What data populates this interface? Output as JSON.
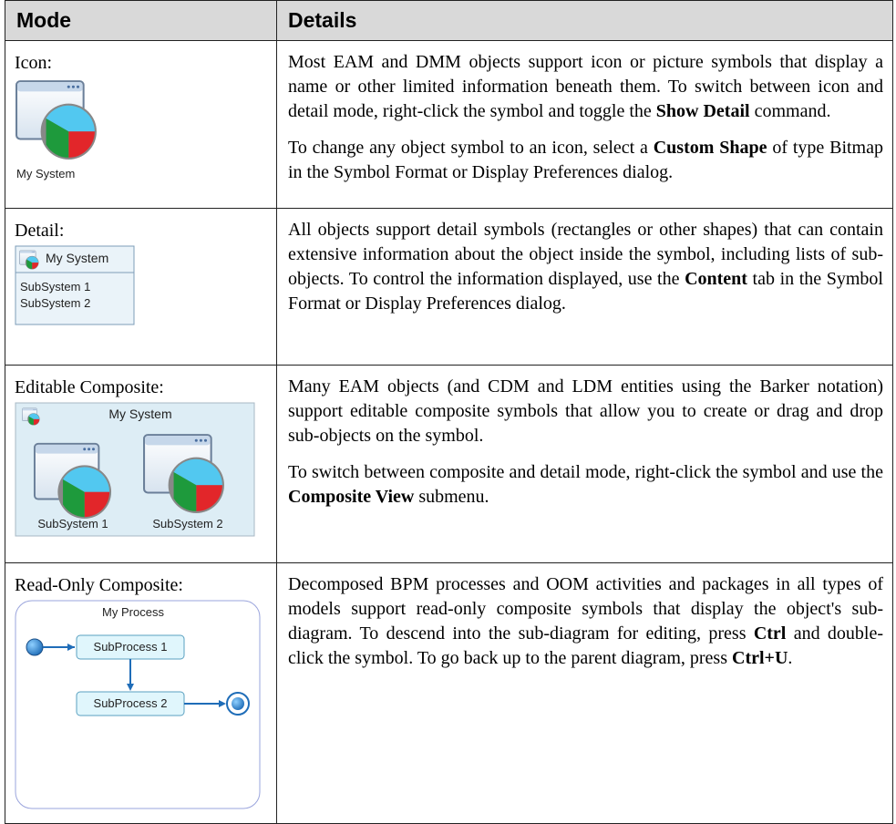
{
  "table": {
    "header": [
      "Mode",
      "Details"
    ],
    "rows": [
      {
        "mode": "Icon:",
        "figure": {
          "label": "My System"
        },
        "details": [
          [
            {
              "text": "Most EAM and DMM objects support icon or picture symbols that display a name or other limited information beneath them. To switch between icon and detail mode, right-click the symbol and toggle the "
            },
            {
              "text": "Show Detail",
              "bold": true
            },
            {
              "text": " command."
            }
          ],
          [
            {
              "text": "To change any object symbol to an icon, select a "
            },
            {
              "text": "Custom Shape",
              "bold": true
            },
            {
              "text": " of type Bitmap in the Symbol Format or Display Preferences dialog."
            }
          ]
        ]
      },
      {
        "mode": "Detail:",
        "figure": {
          "label": "My System",
          "items": [
            "SubSystem 1",
            "SubSystem 2"
          ]
        },
        "details": [
          [
            {
              "text": "All objects support detail symbols (rectangles or other shapes) that can contain extensive information about the object inside the symbol, including lists of sub-objects. To control the information displayed, use the "
            },
            {
              "text": "Content",
              "bold": true
            },
            {
              "text": " tab in the Symbol Format or Display Preferences dialog."
            }
          ]
        ]
      },
      {
        "mode": "Editable Composite:",
        "figure": {
          "label": "My System",
          "items": [
            "SubSystem 1",
            "SubSystem 2"
          ]
        },
        "details": [
          [
            {
              "text": "Many EAM objects (and CDM and LDM entities using the Barker notation) support editable composite symbols that allow you to create or drag and drop sub-objects on the symbol."
            }
          ],
          [
            {
              "text": "To switch between composite and detail mode, right-click the symbol and use the "
            },
            {
              "text": "Composite View",
              "bold": true
            },
            {
              "text": " submenu."
            }
          ]
        ]
      },
      {
        "mode": "Read-Only Composite:",
        "figure": {
          "label": "My Process",
          "items": [
            "SubProcess 1",
            "SubProcess 2"
          ]
        },
        "details": [
          [
            {
              "text": "Decomposed BPM processes and OOM activities and packages in all types of models support read-only composite symbols that display the object's sub-diagram. To descend into the sub-diagram for editing, press "
            },
            {
              "text": "Ctrl",
              "bold": true
            },
            {
              "text": " and double-click the symbol. To go back up to the parent diagram, press "
            },
            {
              "text": "Ctrl+U",
              "bold": true
            },
            {
              "text": "."
            }
          ]
        ]
      }
    ]
  }
}
